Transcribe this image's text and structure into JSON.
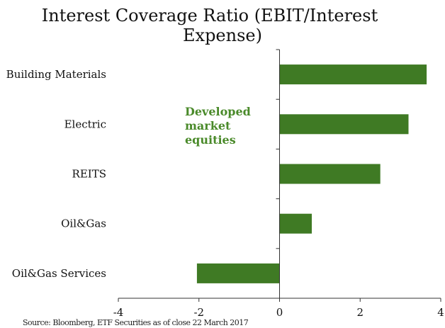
{
  "chart_data": {
    "type": "bar",
    "orientation": "horizontal",
    "title": "Interest Coverage Ratio (EBIT/Interest Expense)",
    "title_lines": [
      "Interest Coverage Ratio (EBIT/Interest",
      "Expense)"
    ],
    "categories": [
      "Building Materials",
      "Electric",
      "REITS",
      "Oil&Gas",
      "Oil&Gas Services"
    ],
    "values": [
      3.65,
      3.2,
      2.5,
      0.8,
      -2.05
    ],
    "xlim": [
      -4,
      4
    ],
    "xticks": [
      "-4",
      "-2",
      "0",
      "2",
      "4"
    ],
    "annotation": [
      "Developed",
      "market",
      "equities"
    ],
    "bar_color": "#3f7a24",
    "annotation_color": "#4a8a2a",
    "grid": false,
    "legend": "none"
  },
  "source": "Source: Bloomberg, ETF Securities as of close 22 March 2017"
}
